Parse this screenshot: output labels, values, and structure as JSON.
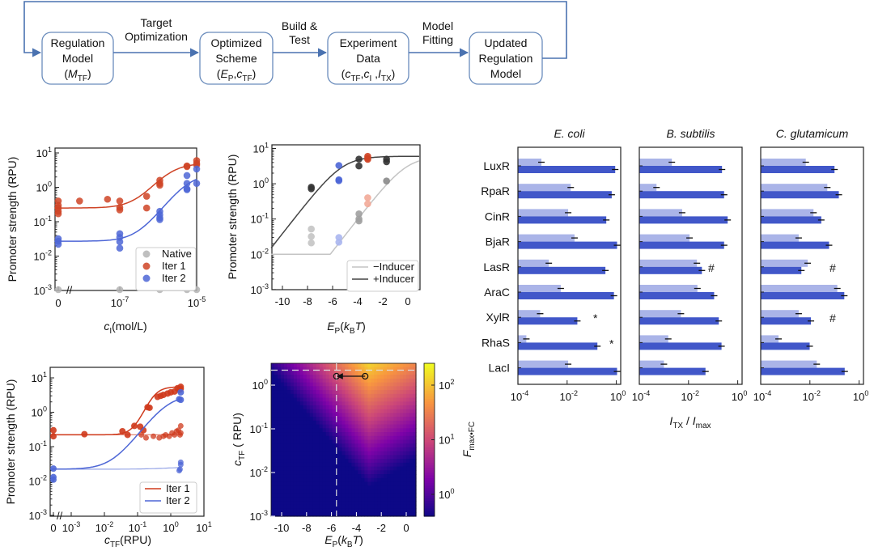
{
  "flowchart": {
    "boxes": [
      {
        "lines": [
          "Regulation",
          "Model"
        ],
        "formula": [
          {
            "t": "(",
            "i": false,
            "s": false
          },
          {
            "t": "M",
            "i": true,
            "s": false
          },
          {
            "t": "TF",
            "i": false,
            "s": true
          },
          {
            "t": ")",
            "i": false,
            "s": false
          }
        ]
      },
      {
        "lines": [
          "Optimized",
          "Scheme"
        ],
        "formula": [
          {
            "t": "(",
            "i": false,
            "s": false
          },
          {
            "t": "E",
            "i": true,
            "s": false
          },
          {
            "t": "P",
            "i": false,
            "s": true
          },
          {
            "t": ",",
            "i": false,
            "s": false
          },
          {
            "t": "c",
            "i": true,
            "s": false
          },
          {
            "t": "TF",
            "i": false,
            "s": true
          },
          {
            "t": ")",
            "i": false,
            "s": false
          }
        ]
      },
      {
        "lines": [
          "Experiment",
          "Data"
        ],
        "formula": [
          {
            "t": "(",
            "i": false,
            "s": false
          },
          {
            "t": "c",
            "i": true,
            "s": false
          },
          {
            "t": "TF",
            "i": false,
            "s": true
          },
          {
            "t": ",",
            "i": false,
            "s": false
          },
          {
            "t": "c",
            "i": true,
            "s": false
          },
          {
            "t": "I",
            "i": false,
            "s": true
          },
          {
            "t": " ,",
            "i": false,
            "s": false
          },
          {
            "t": "I",
            "i": true,
            "s": false
          },
          {
            "t": "TX",
            "i": false,
            "s": true
          },
          {
            "t": ")",
            "i": false,
            "s": false
          }
        ]
      },
      {
        "lines": [
          "Updated",
          "Regulation",
          "Model"
        ],
        "formula": []
      }
    ],
    "arrows": [
      {
        "lines": [
          "Target",
          "Optimization"
        ]
      },
      {
        "lines": [
          "Build &",
          "Test"
        ]
      },
      {
        "lines": [
          "Model",
          "Fitting"
        ]
      }
    ],
    "colors": {
      "border": "#6a8cbc",
      "arrow": "#4a72b0"
    }
  },
  "chart_data": [
    {
      "type": "scatter",
      "ylabel": "Promoter strength (RPU)",
      "xlabel": [
        {
          "t": "c",
          "i": true,
          "s": false
        },
        {
          "t": "I",
          "i": false,
          "s": true
        },
        {
          "t": "(mol/L)",
          "i": false,
          "s": false
        }
      ],
      "xscale": "log (with break at 0)",
      "yscale": "log",
      "ylim": [
        0.001,
        13
      ],
      "x_ticks": [
        "0",
        "10^-7",
        "10^-5"
      ],
      "y_ticks": [
        "10^1",
        "10^0",
        "10^-1",
        "10^-2",
        "10^-3"
      ],
      "legend": "bottom-right",
      "series": [
        {
          "name": "Native",
          "color": "#b4b4b4",
          "points": [
            [
              0,
              0.001
            ],
            [
              1e-07,
              0.001
            ],
            [
              1.1e-06,
              0.001
            ],
            [
              5.6e-06,
              0.001
            ],
            [
              1e-05,
              0.001
            ]
          ]
        },
        {
          "name": "Iter 1",
          "color": "#cf4426",
          "points": [
            [
              0,
              0.4
            ],
            [
              0,
              0.3
            ],
            [
              0,
              0.25
            ],
            [
              0,
              0.2
            ],
            [
              0,
              0.17
            ],
            [
              9e-09,
              0.4
            ],
            [
              4.8e-08,
              0.45
            ],
            [
              1e-07,
              0.4
            ],
            [
              1e-07,
              0.26
            ],
            [
              1e-07,
              0.22
            ],
            [
              5e-07,
              0.55
            ],
            [
              5e-07,
              0.25
            ],
            [
              1.1e-06,
              1.6
            ],
            [
              1.1e-06,
              1.3
            ],
            [
              1.1e-06,
              1.15
            ],
            [
              5.6e-06,
              4
            ],
            [
              5.6e-06,
              4.2
            ],
            [
              1e-05,
              6
            ],
            [
              1e-05,
              5
            ],
            [
              1e-05,
              4.5
            ]
          ],
          "fit": {
            "baseline": 0.25,
            "max": 5,
            "K": 2e-06,
            "n": 1.5
          }
        },
        {
          "name": "Iter 2",
          "color": "#4d66d6",
          "points": [
            [
              0,
              0.032
            ],
            [
              0,
              0.027
            ],
            [
              0,
              0.022
            ],
            [
              1e-07,
              0.045
            ],
            [
              1e-07,
              0.035
            ],
            [
              1e-07,
              0.026
            ],
            [
              1e-07,
              0.017
            ],
            [
              1.1e-06,
              0.2
            ],
            [
              1.1e-06,
              0.16
            ],
            [
              1.1e-06,
              0.13
            ],
            [
              1.1e-06,
              0.115
            ],
            [
              5.6e-06,
              2.2
            ],
            [
              5.6e-06,
              1.3
            ],
            [
              5.6e-06,
              0.9
            ],
            [
              5.6e-06,
              0.85
            ],
            [
              1e-05,
              3.4
            ],
            [
              1e-05,
              1.3
            ]
          ],
          "fit": {
            "baseline": 0.027,
            "max": 2.5,
            "K": 6e-06,
            "n": 1.5
          }
        }
      ]
    },
    {
      "type": "scatter",
      "ylabel": "Promoter strength (RPU)",
      "xlabel": [
        {
          "t": "E",
          "i": true,
          "s": false
        },
        {
          "t": "P",
          "i": false,
          "s": true
        },
        {
          "t": "(",
          "i": false,
          "s": false
        },
        {
          "t": "k",
          "i": true,
          "s": false
        },
        {
          "t": "B",
          "i": false,
          "s": true
        },
        {
          "t": "T",
          "i": true,
          "s": false
        },
        {
          "t": ")",
          "i": false,
          "s": false
        }
      ],
      "yscale": "log",
      "xlim": [
        -10.9,
        0.95
      ],
      "ylim": [
        0.001,
        13
      ],
      "x_ticks": [
        "-10",
        "-8",
        "-6",
        "-4",
        "-2",
        "0"
      ],
      "y_ticks": [
        "10^1",
        "10^0",
        "10^-1",
        "10^-2",
        "10^-3"
      ],
      "legend": "bottom-right",
      "lines": [
        {
          "name": "−Inducer",
          "color": "#c4c4c4",
          "max": 6,
          "E0": -0.1,
          "k": 1.05,
          "floor": 0.01
        },
        {
          "name": "+Inducer",
          "color": "#444444",
          "max": 6,
          "E0": -5.2,
          "k": 1.05,
          "floor": 0
        }
      ],
      "points": [
        {
          "E": -7.7,
          "y": 0.8,
          "color": "#333333"
        },
        {
          "E": -7.7,
          "y": 0.72,
          "color": "#333333"
        },
        {
          "E": -3.9,
          "y": 5,
          "color": "#333333"
        },
        {
          "E": -3.9,
          "y": 3.2,
          "color": "#333333"
        },
        {
          "E": -1.7,
          "y": 5,
          "color": "#333333"
        },
        {
          "E": -1.7,
          "y": 4.2,
          "color": "#333333"
        },
        {
          "E": -5.5,
          "y": 3.3,
          "color": "#4d66d6"
        },
        {
          "E": -5.5,
          "y": 1.3,
          "color": "#4d66d6"
        },
        {
          "E": -5.5,
          "y": 1.22,
          "color": "#4d66d6"
        },
        {
          "E": -3.2,
          "y": 6,
          "color": "#cf4426"
        },
        {
          "E": -3.2,
          "y": 5.3,
          "color": "#cf4426"
        },
        {
          "E": -3.2,
          "y": 4.9,
          "color": "#cf4426"
        },
        {
          "E": -7.7,
          "y": 0.052,
          "color": "#c4c4c4"
        },
        {
          "E": -7.7,
          "y": 0.032,
          "color": "#c4c4c4"
        },
        {
          "E": -7.7,
          "y": 0.021,
          "color": "#c4c4c4"
        },
        {
          "E": -3.9,
          "y": 0.14,
          "color": "#a0a0a0"
        },
        {
          "E": -3.9,
          "y": 0.1,
          "color": "#a0a0a0"
        },
        {
          "E": -3.9,
          "y": 0.088,
          "color": "#a0a0a0"
        },
        {
          "E": -1.7,
          "y": 1.2,
          "color": "#8a8a8a"
        },
        {
          "E": -5.5,
          "y": 0.03,
          "color": "#aab6ef"
        },
        {
          "E": -5.5,
          "y": 0.022,
          "color": "#aab6ef"
        },
        {
          "E": -3.2,
          "y": 0.4,
          "color": "#f2aa98"
        },
        {
          "E": -3.2,
          "y": 0.27,
          "color": "#f2aa98"
        }
      ]
    },
    {
      "type": "scatter",
      "ylabel": "Promoter strength (RPU)",
      "xlabel": [
        {
          "t": "c",
          "i": true,
          "s": false
        },
        {
          "t": "TF",
          "i": false,
          "s": true
        },
        {
          "t": "(RPU)",
          "i": false,
          "s": false
        }
      ],
      "xscale": "log (with break at 0)",
      "yscale": "log",
      "ylim": [
        0.001,
        13
      ],
      "x_ticks": [
        "0",
        "10^-3",
        "10^-2",
        "10^-1",
        "10^0",
        "10^1"
      ],
      "y_ticks": [
        "10^1",
        "10^0",
        "10^-1",
        "10^-2",
        "10^-3"
      ],
      "legend": "bottom-right",
      "series": [
        {
          "name": "Iter 1",
          "color": "#cf3a1c",
          "points": [
            [
              0,
              0.3
            ],
            [
              0,
              0.2
            ],
            [
              0.0025,
              0.23
            ],
            [
              0.035,
              0.28
            ],
            [
              0.05,
              0.22
            ],
            [
              0.08,
              0.4
            ],
            [
              0.12,
              0.38
            ],
            [
              0.15,
              0.3
            ],
            [
              0.2,
              1.4
            ],
            [
              0.23,
              1.35
            ],
            [
              0.4,
              2.8
            ],
            [
              0.5,
              3
            ],
            [
              0.6,
              3.2
            ],
            [
              0.8,
              3.5
            ],
            [
              1,
              3.8
            ],
            [
              1.3,
              4
            ],
            [
              1.6,
              5
            ],
            [
              1.8,
              4.5
            ],
            [
              2,
              5.5
            ],
            [
              2,
              4.8
            ]
          ],
          "points_flat": [
            [
              0.13,
              0.22
            ],
            [
              0.18,
              0.18
            ],
            [
              0.3,
              0.2
            ],
            [
              0.45,
              0.18
            ],
            [
              0.6,
              0.2
            ],
            [
              0.7,
              0.22
            ],
            [
              0.9,
              0.2
            ],
            [
              1.1,
              0.25
            ],
            [
              1.3,
              0.22
            ],
            [
              1.5,
              0.28
            ],
            [
              1.7,
              0.3
            ],
            [
              1.9,
              0.22
            ],
            [
              2,
              0.4
            ],
            [
              2,
              0.25
            ]
          ],
          "fit": {
            "baseline": 0.22,
            "max": 5.5,
            "K": 0.3,
            "n": 2.5
          },
          "fit_flat": {
            "baseline": 0.22,
            "max": 0.22,
            "K": 1,
            "n": 1
          }
        },
        {
          "name": "Iter 2",
          "color": "#4d66d6",
          "points": [
            [
              0,
              0.023
            ],
            [
              0,
              0.013
            ],
            [
              0,
              0.011
            ],
            [
              2,
              3.8
            ],
            [
              1.8,
              2.4
            ],
            [
              2,
              2.3
            ]
          ],
          "points_flat": [
            [
              2,
              0.035
            ],
            [
              2,
              0.03
            ],
            [
              1.9,
              0.022
            ],
            [
              1.8,
              0.02
            ]
          ],
          "fit": {
            "baseline": 0.022,
            "max": 3.2,
            "K": 0.8,
            "n": 1.3
          },
          "fit_flat": {
            "baseline": 0.022,
            "max": 0.026,
            "K": 1,
            "n": 1
          }
        }
      ]
    },
    {
      "type": "heatmap",
      "xlabel": [
        {
          "t": "E",
          "i": true,
          "s": false
        },
        {
          "t": "P",
          "i": false,
          "s": true
        },
        {
          "t": "(",
          "i": false,
          "s": false
        },
        {
          "t": "k",
          "i": true,
          "s": false
        },
        {
          "t": "B",
          "i": false,
          "s": true
        },
        {
          "t": "T",
          "i": true,
          "s": false
        },
        {
          "t": ")",
          "i": false,
          "s": false
        }
      ],
      "ylabel": [
        {
          "t": "c",
          "i": true,
          "s": false
        },
        {
          "t": "TF",
          "i": false,
          "s": true
        },
        {
          "t": " ( RPU)",
          "i": false,
          "s": false
        }
      ],
      "colorbar_label": [
        {
          "t": "F",
          "i": true,
          "s": false
        },
        {
          "t": "max•FC",
          "i": false,
          "s": true
        }
      ],
      "xlim": [
        -10.9,
        0.8
      ],
      "ylim": [
        0.001,
        3.2
      ],
      "x_ticks": [
        "-10",
        "-8",
        "-6",
        "-4",
        "-2",
        "0"
      ],
      "y_ticks": [
        "10^0",
        "10^-1",
        "10^-2",
        "10^-3"
      ],
      "colorbar_ticks": [
        "10^2",
        "10^1",
        "10^0"
      ],
      "colorbar_range": [
        0.4,
        250
      ],
      "colormap": "plasma",
      "dashed_lines": {
        "E": -5.6,
        "c_TF": 2.2
      },
      "optimization_arrow": {
        "from": {
          "E": -3.3,
          "c_TF": 1.6
        },
        "to": {
          "E": -5.6,
          "c_TF": 1.6
        }
      }
    },
    {
      "type": "bar",
      "orientation": "horizontal",
      "xscale": "log",
      "xlabel": [
        {
          "t": "I",
          "i": true,
          "s": false
        },
        {
          "t": "TX",
          "i": false,
          "s": true
        },
        {
          "t": " / ",
          "i": false,
          "s": false
        },
        {
          "t": "I",
          "i": true,
          "s": false
        },
        {
          "t": "max",
          "i": false,
          "s": true
        }
      ],
      "x_ticks": [
        "10^-4",
        "10^-2",
        "10^0"
      ],
      "categories": [
        "LuxR",
        "RpaR",
        "CinR",
        "BjaR",
        "LasR",
        "AraC",
        "XylR",
        "RhaS",
        "LacI"
      ],
      "colors": {
        "light": "#aab4e8",
        "dark": "#4157c9"
      },
      "panels": [
        {
          "title": "E. coli",
          "light": [
            0.0009,
            0.014,
            0.011,
            0.02,
            0.0018,
            0.0055,
            0.0008,
            0.00022,
            0.011
          ],
          "dark": [
            0.9,
            0.65,
            0.39,
            1.07,
            0.36,
            0.8,
            0.026,
            0.17,
            1.07
          ],
          "annotations": [
            {
              "row": "XylR",
              "mark": "*"
            },
            {
              "row": "RhaS",
              "mark": "*"
            }
          ]
        },
        {
          "title": "B. subtilis",
          "light": [
            0.0021,
            0.0005,
            0.0055,
            0.011,
            0.022,
            0.023,
            0.0049,
            0.0015,
            0.001
          ],
          "dark": [
            0.23,
            0.28,
            0.39,
            0.28,
            0.035,
            0.11,
            0.17,
            0.22,
            0.049
          ],
          "annotations": [
            {
              "row": "LasR",
              "mark": "#"
            }
          ]
        },
        {
          "title": "C. glutamicum",
          "light": [
            0.0068,
            0.051,
            0.014,
            0.0035,
            0.0081,
            0.13,
            0.0035,
            0.00053,
            0.019
          ],
          "dark": [
            0.1,
            0.15,
            0.029,
            0.06,
            0.0045,
            0.25,
            0.011,
            0.0098,
            0.26
          ],
          "annotations": [
            {
              "row": "LasR",
              "mark": "#"
            },
            {
              "row": "XylR",
              "mark": "#"
            }
          ]
        }
      ]
    }
  ]
}
